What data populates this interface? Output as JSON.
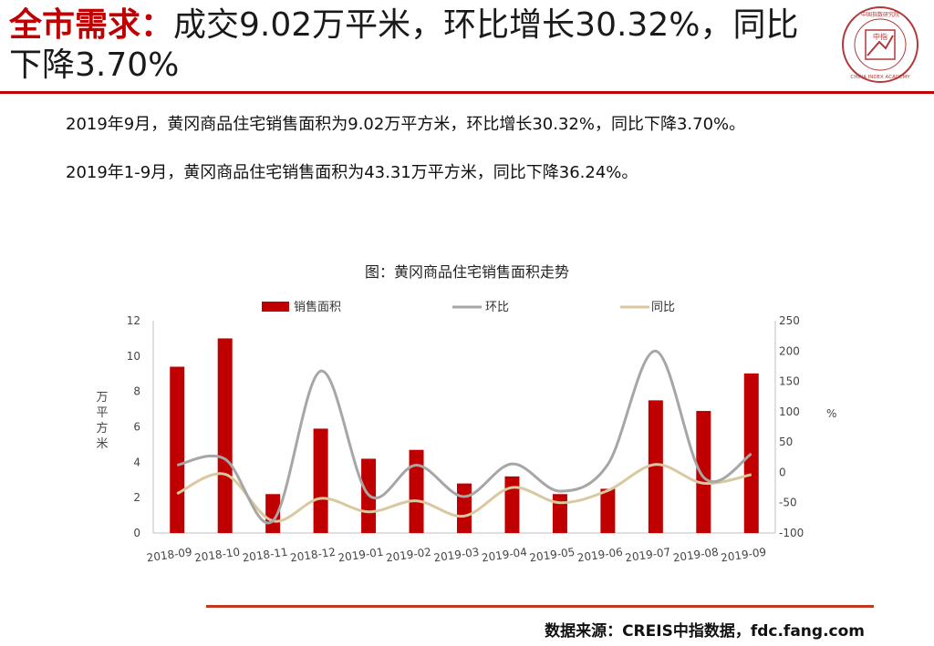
{
  "header": {
    "title_highlight": "全市需求：",
    "title_rest": "成交9.02万平米，环比增长30.32%，同比下降3.70%",
    "logo_icon": "china-index-academy-seal",
    "logo_text_top": "中国指数研究院",
    "logo_text_center": "中指",
    "logo_text_bottom": "CHINA INDEX ACADEMY"
  },
  "summary": [
    "2019年9月，黄冈商品住宅销售面积为9.02万平方米，环比增长30.32%，同比下降3.70%。",
    "2019年1-9月，黄冈商品住宅销售面积为43.31万平方米，同比下降36.24%。"
  ],
  "footer": {
    "source": "数据来源：CREIS中指数据，fdc.fang.com"
  },
  "colors": {
    "accent": "#c00000",
    "bar": "#c00000",
    "mom_line": "#a6a6a6",
    "yoy_line": "#d9c8a0"
  },
  "chart_data": {
    "type": "bar+line",
    "title": "图：黄冈商品住宅销售面积走势",
    "categories": [
      "2018-09",
      "2018-10",
      "2018-11",
      "2018-12",
      "2019-01",
      "2019-02",
      "2019-03",
      "2019-04",
      "2019-05",
      "2019-06",
      "2019-07",
      "2019-08",
      "2019-09"
    ],
    "series": [
      {
        "name": "销售面积",
        "kind": "bar",
        "axis": "left",
        "values": [
          9.4,
          11.0,
          2.2,
          5.9,
          4.2,
          4.7,
          2.8,
          3.2,
          2.2,
          2.5,
          7.5,
          6.9,
          9.02
        ]
      },
      {
        "name": "环比",
        "kind": "line",
        "axis": "right",
        "values": [
          12,
          22,
          -80,
          167,
          -37,
          12,
          -40,
          14,
          -31,
          13,
          200,
          -8,
          30.32
        ]
      },
      {
        "name": "同比",
        "kind": "line",
        "axis": "right",
        "values": [
          -35,
          -3,
          -80,
          -43,
          -65,
          -47,
          -72,
          -25,
          -50,
          -30,
          13,
          -18,
          -3.7
        ]
      }
    ],
    "ylabel_left": "万平方米",
    "ylabel_right": "%",
    "ylim_left": [
      0,
      12
    ],
    "yticks_left": [
      "0",
      "2",
      "4",
      "6",
      "8",
      "10",
      "12"
    ],
    "ylim_right": [
      -100,
      250
    ],
    "yticks_right": [
      "-100",
      "-50",
      "0",
      "50",
      "100",
      "150",
      "200",
      "250"
    ],
    "legend_position": "top",
    "grid": false
  }
}
